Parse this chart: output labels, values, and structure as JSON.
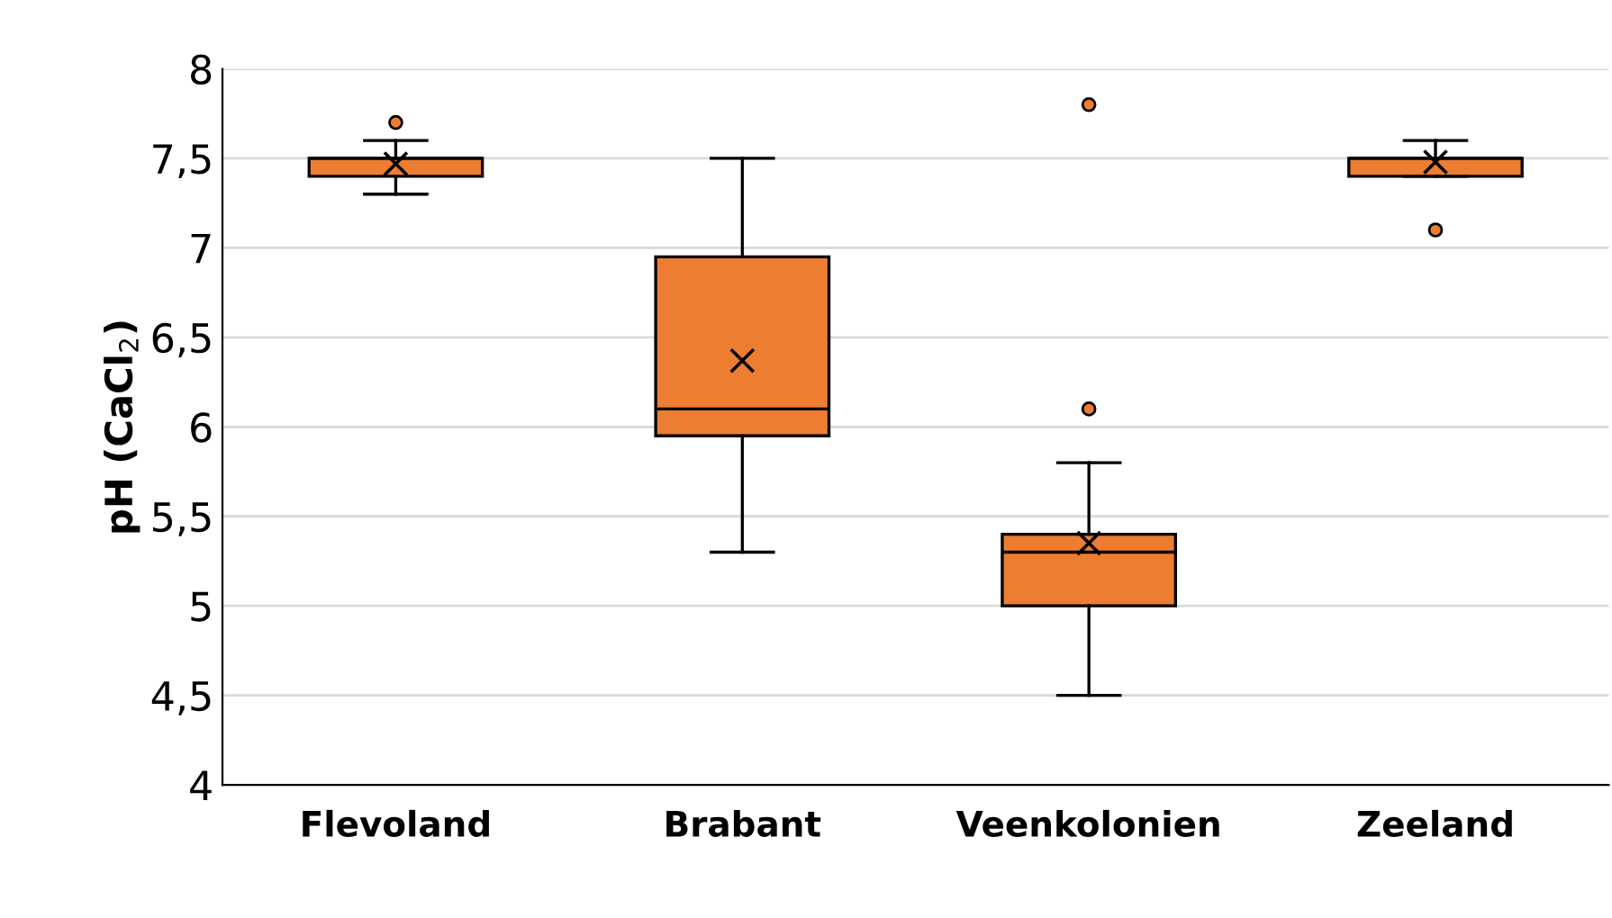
{
  "chart_data": {
    "type": "box",
    "ylabel": "pH (CaCl$_{2}$)",
    "categories": [
      "Flevoland",
      "Brabant",
      "Veenkolonien",
      "Zeeland"
    ],
    "color": "#ed7d31",
    "boxes": [
      {
        "low": 7.3,
        "q1": 7.4,
        "median": 7.5,
        "q3": 7.5,
        "high": 7.6,
        "mean": 7.47,
        "outliers": [
          7.7
        ]
      },
      {
        "low": 5.3,
        "q1": 5.95,
        "median": 6.1,
        "q3": 6.95,
        "high": 7.5,
        "mean": 6.37
      },
      {
        "low": 4.5,
        "q1": 5.0,
        "median": 5.3,
        "q3": 5.4,
        "high": 5.8,
        "mean": 5.35,
        "outliers": [
          6.1,
          7.8
        ]
      },
      {
        "low": 7.4,
        "q1": 7.4,
        "median": 7.5,
        "q3": 7.5,
        "high": 7.6,
        "mean": 7.48,
        "outliers": [
          7.1
        ]
      }
    ],
    "ylim": [
      4,
      8
    ],
    "yticks": [
      4,
      {
        "value": 4.5,
        "label": "4,5"
      },
      5,
      {
        "value": 5.5,
        "label": "5,5"
      },
      6,
      {
        "value": 6.5,
        "label": "6,5"
      },
      7,
      {
        "value": 7.5,
        "label": "7,5"
      },
      8
    ],
    "grid": "y"
  }
}
